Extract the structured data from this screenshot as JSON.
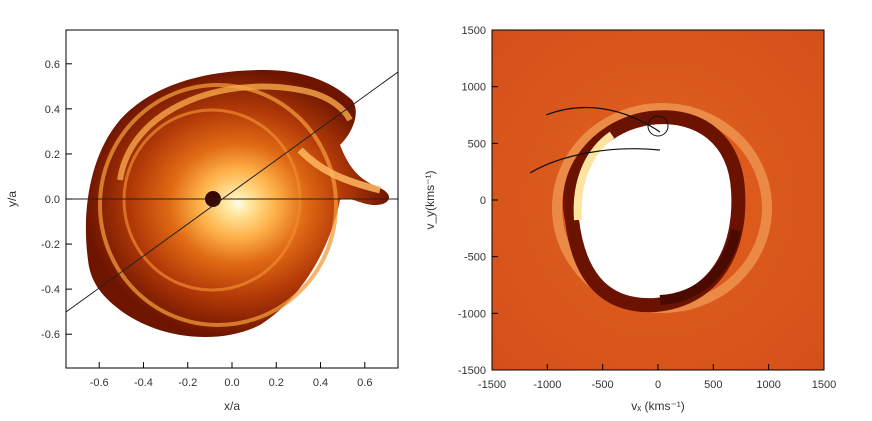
{
  "left_panel": {
    "xlabel": "x/a",
    "ylabel": "y/a",
    "x_ticks": [
      "-0.6",
      "-0.4",
      "-0.2",
      "0.0",
      "0.2",
      "0.4",
      "0.6"
    ],
    "y_ticks": [
      "0.6",
      "0.4",
      "0.2",
      "0.0",
      "-0.2",
      "-0.4",
      "-0.6"
    ],
    "xlim": [
      -0.75,
      0.75
    ],
    "ylim": [
      -0.75,
      0.75
    ]
  },
  "right_panel": {
    "xlabel": "vₓ (kms⁻¹)",
    "ylabel": "v_y(kms⁻¹)",
    "x_ticks": [
      "-1500",
      "-1000",
      "-500",
      "0",
      "500",
      "1000",
      "1500"
    ],
    "y_ticks": [
      "1500",
      "1000",
      "500",
      "0",
      "-500",
      "-1000",
      "-1500"
    ],
    "xlim": [
      -1500,
      1500
    ],
    "ylim": [
      -1500,
      1500
    ]
  },
  "colors": {
    "dark": "#6b1200",
    "mid": "#c84a10",
    "bright": "#ffd27a",
    "white": "#ffffff",
    "background_right": "#d9541a"
  }
}
